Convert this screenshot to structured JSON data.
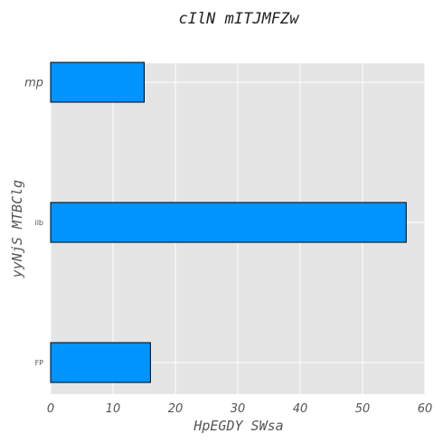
{
  "chart_data": {
    "type": "bar",
    "orientation": "horizontal",
    "title": "cIlN mITJMFZw",
    "xlabel": "HpEGDY SWsa",
    "ylabel": "yyNjS MTBClg",
    "categories": [
      "mp",
      "ilb",
      "FP"
    ],
    "values": [
      15,
      57,
      16
    ],
    "xlim": [
      0,
      60
    ],
    "xticks": [
      0,
      10,
      20,
      30,
      40,
      50,
      60
    ],
    "grid": true,
    "bar_color": "#0094ff",
    "background_color": "#e5e5e5"
  }
}
